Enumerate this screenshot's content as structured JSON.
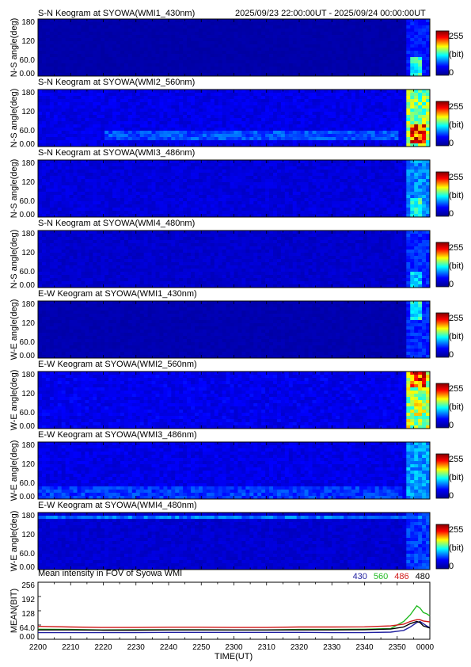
{
  "header": {
    "date_range": "2025/09/23 22:00:00UT - 2025/09/24 00:00:00UT"
  },
  "colorbar": {
    "max_label": "255",
    "unit_label": "(bit)",
    "min_label": "0"
  },
  "colors": {
    "colormap": [
      "#00008f",
      "#0000ff",
      "#00ffff",
      "#ffff00",
      "#ff0000",
      "#800000"
    ],
    "series_430": "#1f1f9f",
    "series_560": "#22bb22",
    "series_486": "#d01818",
    "series_480": "#000000"
  },
  "chart_data": [
    {
      "type": "heatmap",
      "title": "S-N Keogram at SYOWA(WMI1_430nm)",
      "ylabel": "N-S angle(deg)",
      "ytick_labels": [
        "180",
        "120",
        "60.0",
        "0.00"
      ],
      "ylim": [
        0,
        180
      ],
      "xlim": [
        0,
        120
      ],
      "value_range": [
        0,
        255
      ],
      "colorbar_ticks": [
        "255",
        "(bit)",
        "0"
      ],
      "background_level": 12,
      "activity": [
        {
          "t0": 113,
          "t1": 120,
          "lo": 0,
          "hi": 180,
          "level": 55
        },
        {
          "t0": 114,
          "t1": 118,
          "lo": 0,
          "hi": 55,
          "level": 120
        }
      ]
    },
    {
      "type": "heatmap",
      "title": "S-N Keogram at SYOWA(WMI2_560nm)",
      "ylabel": "N-S angle(deg)",
      "ytick_labels": [
        "180",
        "120",
        "60.0",
        "0.00"
      ],
      "ylim": [
        0,
        180
      ],
      "xlim": [
        0,
        120
      ],
      "value_range": [
        0,
        255
      ],
      "colorbar_ticks": [
        "255",
        "(bit)",
        "0"
      ],
      "background_level": 40,
      "activity": [
        {
          "t0": 113,
          "t1": 120,
          "lo": 0,
          "hi": 180,
          "level": 140
        },
        {
          "t0": 114,
          "t1": 119,
          "lo": 10,
          "hi": 70,
          "level": 210
        },
        {
          "t0": 20,
          "t1": 110,
          "lo": 25,
          "hi": 50,
          "level": 70
        }
      ]
    },
    {
      "type": "heatmap",
      "title": "S-N Keogram at SYOWA(WMI3_486nm)",
      "ylabel": "N-S angle(deg)",
      "ytick_labels": [
        "180",
        "120",
        "60.0",
        "0.00"
      ],
      "ylim": [
        0,
        180
      ],
      "xlim": [
        0,
        120
      ],
      "value_range": [
        0,
        255
      ],
      "colorbar_ticks": [
        "255",
        "(bit)",
        "0"
      ],
      "background_level": 35,
      "activity": [
        {
          "t0": 113,
          "t1": 120,
          "lo": 0,
          "hi": 180,
          "level": 85
        },
        {
          "t0": 114,
          "t1": 118,
          "lo": 0,
          "hi": 60,
          "level": 120
        }
      ]
    },
    {
      "type": "heatmap",
      "title": "S-N Keogram at SYOWA(WMI4_480nm)",
      "ylabel": "N-S angle(deg)",
      "ytick_labels": [
        "180",
        "120",
        "60.0",
        "0.00"
      ],
      "ylim": [
        0,
        180
      ],
      "xlim": [
        0,
        120
      ],
      "value_range": [
        0,
        255
      ],
      "colorbar_ticks": [
        "255",
        "(bit)",
        "0"
      ],
      "background_level": 28,
      "activity": [
        {
          "t0": 113,
          "t1": 120,
          "lo": 0,
          "hi": 180,
          "level": 60
        },
        {
          "t0": 114,
          "t1": 118,
          "lo": 0,
          "hi": 50,
          "level": 105
        }
      ]
    },
    {
      "type": "heatmap",
      "title": "E-W Keogram at SYOWA(WMI1_430nm)",
      "ylabel": "W-E angle(deg)",
      "ytick_labels": [
        "180",
        "120",
        "60.0",
        "0.00"
      ],
      "ylim": [
        0,
        180
      ],
      "xlim": [
        0,
        120
      ],
      "value_range": [
        0,
        255
      ],
      "colorbar_ticks": [
        "255",
        "(bit)",
        "0"
      ],
      "background_level": 15,
      "activity": [
        {
          "t0": 113,
          "t1": 120,
          "lo": 0,
          "hi": 180,
          "level": 60
        },
        {
          "t0": 114,
          "t1": 118,
          "lo": 120,
          "hi": 180,
          "level": 115
        }
      ]
    },
    {
      "type": "heatmap",
      "title": "E-W Keogram at SYOWA(WMI2_560nm)",
      "ylabel": "W-E angle(deg)",
      "ytick_labels": [
        "180",
        "120",
        "60.0",
        "0.00"
      ],
      "ylim": [
        0,
        180
      ],
      "xlim": [
        0,
        120
      ],
      "value_range": [
        0,
        255
      ],
      "colorbar_ticks": [
        "255",
        "(bit)",
        "0"
      ],
      "background_level": 42,
      "activity": [
        {
          "t0": 113,
          "t1": 120,
          "lo": 0,
          "hi": 180,
          "level": 150
        },
        {
          "t0": 114,
          "t1": 119,
          "lo": 130,
          "hi": 180,
          "level": 205
        }
      ]
    },
    {
      "type": "heatmap",
      "title": "E-W Keogram at SYOWA(WMI3_486nm)",
      "ylabel": "W-E angle(deg)",
      "ytick_labels": [
        "180",
        "120",
        "60.0",
        "0.00"
      ],
      "ylim": [
        0,
        180
      ],
      "xlim": [
        0,
        120
      ],
      "value_range": [
        0,
        255
      ],
      "colorbar_ticks": [
        "255",
        "(bit)",
        "0"
      ],
      "background_level": 40,
      "activity": [
        {
          "t0": 113,
          "t1": 120,
          "lo": 0,
          "hi": 180,
          "level": 90
        },
        {
          "t0": 0,
          "t1": 112,
          "lo": 0,
          "hi": 40,
          "level": 65
        }
      ]
    },
    {
      "type": "heatmap",
      "title": "E-W Keogram at SYOWA(WMI4_480nm)",
      "ylabel": "W-E angle(deg)",
      "ytick_labels": [
        "180",
        "120",
        "60.0",
        "0.00"
      ],
      "ylim": [
        0,
        180
      ],
      "xlim": [
        0,
        120
      ],
      "value_range": [
        0,
        255
      ],
      "colorbar_ticks": [
        "255",
        "(bit)",
        "0"
      ],
      "background_level": 30,
      "activity": [
        {
          "t0": 113,
          "t1": 120,
          "lo": 0,
          "hi": 180,
          "level": 65
        },
        {
          "t0": 0,
          "t1": 120,
          "lo": 162,
          "hi": 166,
          "level": 80
        }
      ]
    },
    {
      "type": "line",
      "title": "Mean intensity in FOV of Syowa WMI",
      "xlabel": "TIME(UT)",
      "ylabel": "MEAN(BIT)",
      "ylim": [
        0,
        256
      ],
      "ytick_labels": [
        "256",
        "192",
        "128",
        "64.0",
        "0.00"
      ],
      "x_tick_labels": [
        "2200",
        "2210",
        "2220",
        "2230",
        "2240",
        "2250",
        "2300",
        "2310",
        "2320",
        "2330",
        "2340",
        "2350",
        "0000"
      ],
      "x": [
        0,
        10,
        20,
        30,
        40,
        50,
        60,
        70,
        80,
        90,
        100,
        108,
        112,
        114,
        116,
        117,
        118,
        119,
        120
      ],
      "series": [
        {
          "name": "430",
          "values": [
            30,
            30,
            30,
            30,
            31,
            31,
            31,
            31,
            31,
            30,
            30,
            32,
            40,
            55,
            75,
            80,
            70,
            60,
            52
          ]
        },
        {
          "name": "560",
          "values": [
            45,
            44,
            42,
            43,
            43,
            43,
            42,
            42,
            44,
            44,
            45,
            48,
            80,
            110,
            150,
            140,
            120,
            115,
            105
          ]
        },
        {
          "name": "486",
          "values": [
            58,
            55,
            53,
            53,
            54,
            54,
            53,
            53,
            55,
            55,
            56,
            60,
            68,
            80,
            88,
            88,
            82,
            80,
            78
          ]
        },
        {
          "name": "480",
          "values": [
            42,
            42,
            41,
            41,
            42,
            42,
            42,
            42,
            42,
            42,
            43,
            46,
            55,
            70,
            80,
            75,
            60,
            55,
            50
          ]
        }
      ]
    }
  ]
}
